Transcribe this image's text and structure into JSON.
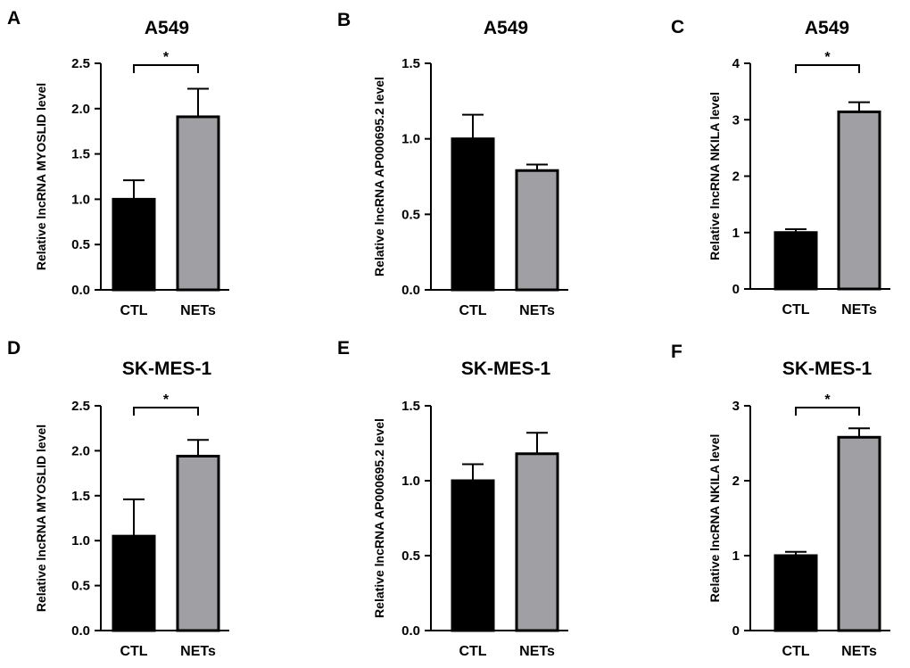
{
  "chart_data": [
    {
      "panel": "A",
      "type": "bar",
      "title": "A549",
      "ylabel": "Relative lncRNA MYOSLID level",
      "categories": [
        "CTL",
        "NETs"
      ],
      "values": [
        1.0,
        1.91
      ],
      "errors": [
        0.21,
        0.31
      ],
      "ylim": [
        0,
        2.5
      ],
      "yticks": [
        "0.0",
        "0.5",
        "1.0",
        "1.5",
        "2.0",
        "2.5"
      ],
      "colors": [
        "#000000",
        "#a0a0a4"
      ],
      "significance": "*"
    },
    {
      "panel": "B",
      "type": "bar",
      "title": "A549",
      "ylabel": "Relative lncRNA AP000695.2 level",
      "categories": [
        "CTL",
        "NETs"
      ],
      "values": [
        1.0,
        0.79
      ],
      "errors": [
        0.16,
        0.04
      ],
      "ylim": [
        0,
        1.5
      ],
      "yticks": [
        "0.0",
        "0.5",
        "1.0",
        "1.5"
      ],
      "colors": [
        "#000000",
        "#a0a0a4"
      ],
      "significance": ""
    },
    {
      "panel": "C",
      "type": "bar",
      "title": "A549",
      "ylabel": "Relative lncRNA NKILA level",
      "categories": [
        "CTL",
        "NETs"
      ],
      "values": [
        1.0,
        3.14
      ],
      "errors": [
        0.06,
        0.17
      ],
      "ylim": [
        0,
        4
      ],
      "yticks": [
        "0",
        "1",
        "2",
        "3",
        "4"
      ],
      "colors": [
        "#000000",
        "#a0a0a4"
      ],
      "significance": "*"
    },
    {
      "panel": "D",
      "type": "bar",
      "title": "SK-MES-1",
      "ylabel": "Relative lncRNA MYOSLID level",
      "categories": [
        "CTL",
        "NETs"
      ],
      "values": [
        1.05,
        1.94
      ],
      "errors": [
        0.41,
        0.18
      ],
      "ylim": [
        0,
        2.5
      ],
      "yticks": [
        "0.0",
        "0.5",
        "1.0",
        "1.5",
        "2.0",
        "2.5"
      ],
      "colors": [
        "#000000",
        "#a0a0a4"
      ],
      "significance": "*"
    },
    {
      "panel": "E",
      "type": "bar",
      "title": "SK-MES-1",
      "ylabel": "Relative lncRNA AP000695.2 level",
      "categories": [
        "CTL",
        "NETs"
      ],
      "values": [
        1.0,
        1.18
      ],
      "errors": [
        0.11,
        0.14
      ],
      "ylim": [
        0,
        1.5
      ],
      "yticks": [
        "0.0",
        "0.5",
        "1.0",
        "1.5"
      ],
      "colors": [
        "#000000",
        "#a0a0a4"
      ],
      "significance": ""
    },
    {
      "panel": "F",
      "type": "bar",
      "title": "SK-MES-1",
      "ylabel": "Relative lncRNA NKILA level",
      "categories": [
        "CTL",
        "NETs"
      ],
      "values": [
        1.0,
        2.58
      ],
      "errors": [
        0.05,
        0.12
      ],
      "ylim": [
        0,
        3
      ],
      "yticks": [
        "0",
        "1",
        "2",
        "3"
      ],
      "colors": [
        "#000000",
        "#a0a0a4"
      ],
      "significance": "*"
    }
  ]
}
